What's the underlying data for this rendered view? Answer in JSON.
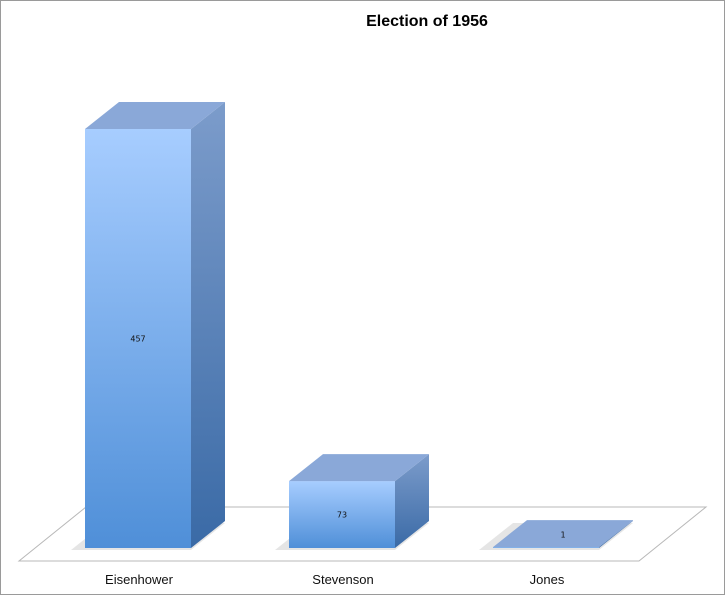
{
  "chart_data": {
    "type": "bar",
    "title": "Election of 1956",
    "xlabel": "",
    "ylabel": "",
    "categories": [
      "Eisenhower",
      "Stevenson",
      "Jones"
    ],
    "values": [
      457,
      73,
      1
    ],
    "data_labels": [
      "457",
      "73",
      "1"
    ],
    "ylim": [
      0,
      457
    ],
    "grid": false,
    "legend": "none",
    "style": "3d-column"
  },
  "colors": {
    "bar_front_top": "#a7cdff",
    "bar_front_bottom": "#4f8fd8",
    "bar_top": "#8aa8d8",
    "bar_side_top": "#7c9ccb",
    "bar_side_bottom": "#3a6aa6",
    "floor_stroke": "#b8b8b8"
  }
}
